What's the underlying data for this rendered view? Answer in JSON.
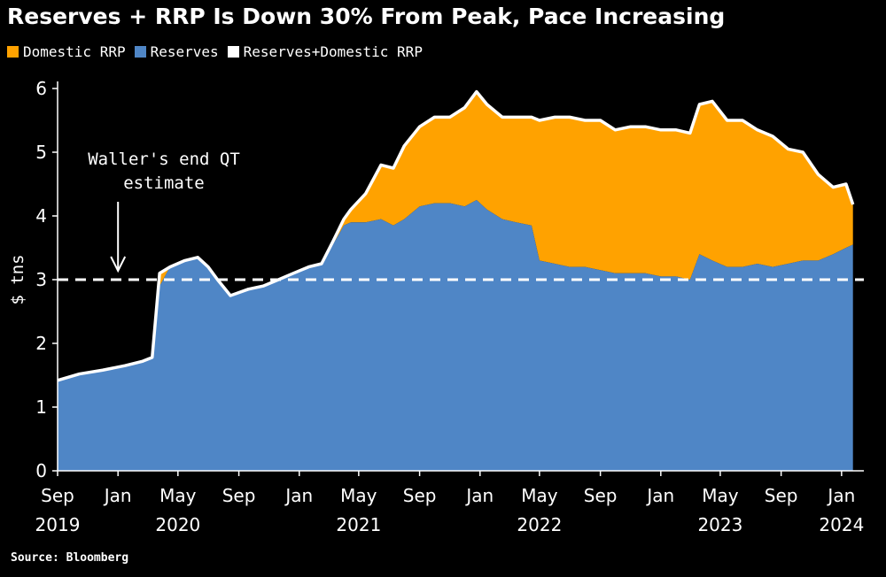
{
  "title": "Reserves + RRP Is Down 30% From Peak, Pace Increasing",
  "source": "Source: Bloomberg",
  "colors": {
    "domestic_rrp": "#FFA200",
    "reserves": "#4F86C6",
    "total": "#FFFFFF",
    "background": "#000000"
  },
  "legend": [
    {
      "label": "Domestic RRP",
      "color": "#FFA200"
    },
    {
      "label": "Reserves",
      "color": "#4F86C6"
    },
    {
      "label": "Reserves+Domestic RRP",
      "color": "#FFFFFF"
    }
  ],
  "chart_data": {
    "type": "area",
    "title": "Reserves + RRP Is Down 30% From Peak, Pace Increasing",
    "ylabel": "$ tns",
    "ylim": [
      0,
      6
    ],
    "yticks": [
      0,
      1,
      2,
      3,
      4,
      5,
      6
    ],
    "xlim": [
      "2019-09-01",
      "2024-02-15"
    ],
    "xticks": [
      {
        "date": "2019-09-01",
        "label": "Sep",
        "year": "2019"
      },
      {
        "date": "2020-01-01",
        "label": "Jan",
        "year": ""
      },
      {
        "date": "2020-05-01",
        "label": "May",
        "year": "2020"
      },
      {
        "date": "2020-09-01",
        "label": "Sep",
        "year": ""
      },
      {
        "date": "2021-01-01",
        "label": "Jan",
        "year": ""
      },
      {
        "date": "2021-05-01",
        "label": "May",
        "year": "2021"
      },
      {
        "date": "2021-09-01",
        "label": "Sep",
        "year": ""
      },
      {
        "date": "2022-01-01",
        "label": "Jan",
        "year": ""
      },
      {
        "date": "2022-05-01",
        "label": "May",
        "year": "2022"
      },
      {
        "date": "2022-09-01",
        "label": "Sep",
        "year": ""
      },
      {
        "date": "2023-01-01",
        "label": "Jan",
        "year": ""
      },
      {
        "date": "2023-05-01",
        "label": "May",
        "year": "2023"
      },
      {
        "date": "2023-09-01",
        "label": "Sep",
        "year": ""
      },
      {
        "date": "2024-01-01",
        "label": "Jan",
        "year": "2024"
      }
    ],
    "reference_line": {
      "y": 3.0,
      "style": "dashed"
    },
    "annotation": {
      "text": [
        "Waller's end QT",
        "estimate"
      ],
      "arrow_to_date": "2020-01-01",
      "arrow_to_y": 3.0
    },
    "x": [
      "2019-09-01",
      "2019-10-15",
      "2019-12-01",
      "2020-01-15",
      "2020-02-20",
      "2020-03-10",
      "2020-03-25",
      "2020-04-15",
      "2020-05-15",
      "2020-06-10",
      "2020-07-01",
      "2020-07-20",
      "2020-08-15",
      "2020-09-20",
      "2020-10-20",
      "2020-11-20",
      "2020-12-20",
      "2021-01-20",
      "2021-02-15",
      "2021-03-10",
      "2021-04-01",
      "2021-04-15",
      "2021-05-15",
      "2021-06-15",
      "2021-07-10",
      "2021-08-01",
      "2021-09-01",
      "2021-10-01",
      "2021-11-01",
      "2021-12-01",
      "2021-12-25",
      "2022-01-15",
      "2022-02-15",
      "2022-03-15",
      "2022-04-15",
      "2022-05-01",
      "2022-06-01",
      "2022-07-01",
      "2022-08-01",
      "2022-09-01",
      "2022-10-01",
      "2022-11-01",
      "2022-12-01",
      "2023-01-01",
      "2023-02-01",
      "2023-03-01",
      "2023-03-20",
      "2023-04-15",
      "2023-05-15",
      "2023-06-15",
      "2023-07-15",
      "2023-08-15",
      "2023-09-15",
      "2023-10-15",
      "2023-11-15",
      "2023-12-15",
      "2024-01-10",
      "2024-01-24"
    ],
    "series": [
      {
        "name": "Reserves",
        "values": [
          1.42,
          1.52,
          1.58,
          1.65,
          1.72,
          1.78,
          2.9,
          3.2,
          3.3,
          3.35,
          3.2,
          3.0,
          2.75,
          2.85,
          2.9,
          3.0,
          3.1,
          3.2,
          3.25,
          3.55,
          3.85,
          3.9,
          3.9,
          3.95,
          3.85,
          3.95,
          4.15,
          4.2,
          4.2,
          4.15,
          4.25,
          4.1,
          3.95,
          3.9,
          3.85,
          3.3,
          3.25,
          3.2,
          3.2,
          3.15,
          3.1,
          3.1,
          3.1,
          3.05,
          3.05,
          3.0,
          3.4,
          3.3,
          3.2,
          3.2,
          3.25,
          3.2,
          3.25,
          3.3,
          3.3,
          3.4,
          3.5,
          3.55
        ]
      },
      {
        "name": "Domestic RRP",
        "values": [
          0.0,
          0.0,
          0.0,
          0.0,
          0.0,
          0.0,
          0.2,
          0.0,
          0.0,
          0.0,
          0.0,
          0.0,
          0.0,
          0.0,
          0.0,
          0.0,
          0.0,
          0.0,
          0.0,
          0.05,
          0.1,
          0.2,
          0.45,
          0.85,
          0.9,
          1.15,
          1.25,
          1.35,
          1.35,
          1.55,
          1.7,
          1.65,
          1.6,
          1.65,
          1.7,
          2.2,
          2.3,
          2.35,
          2.3,
          2.35,
          2.25,
          2.3,
          2.3,
          2.3,
          2.3,
          2.3,
          2.35,
          2.5,
          2.3,
          2.3,
          2.1,
          2.05,
          1.8,
          1.7,
          1.35,
          1.05,
          1.0,
          0.63
        ]
      },
      {
        "name": "Reserves+Domestic RRP",
        "values": [
          1.42,
          1.52,
          1.58,
          1.65,
          1.72,
          1.78,
          3.1,
          3.2,
          3.3,
          3.35,
          3.2,
          3.0,
          2.75,
          2.85,
          2.9,
          3.0,
          3.1,
          3.2,
          3.25,
          3.6,
          3.95,
          4.1,
          4.35,
          4.8,
          4.75,
          5.1,
          5.4,
          5.55,
          5.55,
          5.7,
          5.95,
          5.75,
          5.55,
          5.55,
          5.55,
          5.5,
          5.55,
          5.55,
          5.5,
          5.5,
          5.35,
          5.4,
          5.4,
          5.35,
          5.35,
          5.3,
          5.75,
          5.8,
          5.5,
          5.5,
          5.35,
          5.25,
          5.05,
          5.0,
          4.65,
          4.45,
          4.5,
          4.18
        ]
      }
    ]
  }
}
